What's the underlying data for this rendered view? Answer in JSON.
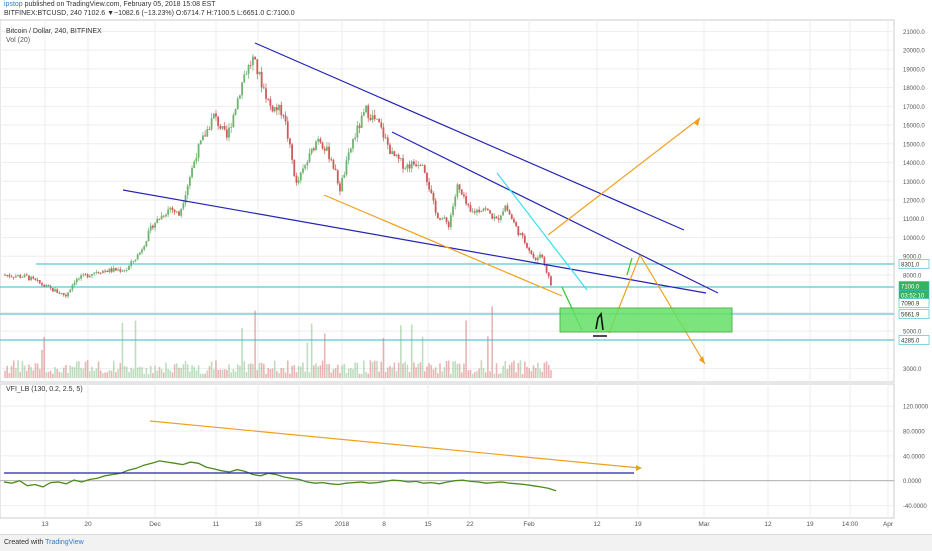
{
  "header": {
    "user": "ipstop",
    "publish_text": "published on TradingView.com, February 05, 2018 15:08 EST",
    "ticker_line": "BITFINEX:BTCUSD, 240  7102.6  ▼−1082.6 (−13.23%)  O:6714.7  H:7100.5  L:6651.0  C:7100.0"
  },
  "panes": {
    "price_title": "Bitcoin / Dollar, 240, BITFINEX",
    "vol_label": "Vol (20)",
    "vfi_label": "VFI_LB (130, 0.2, 2.5, 5)"
  },
  "footer": {
    "created_with": "Created with",
    "brand": "TradingView"
  },
  "colors": {
    "up": "#6fb36f",
    "down": "#d05a5a",
    "trend": "#2323b4",
    "fib": "#35b9c9",
    "orange": "#f0a020",
    "cyan": "#35e0ee",
    "green_zone": "#66e066",
    "vfi": "#4a8a1e",
    "grid": "#eeeeee"
  },
  "chart_data": [
    {
      "type": "candlestick",
      "title": "Bitcoin / Dollar, 240, BITFINEX",
      "x_tick_labels": [
        "13",
        "20",
        "Dec",
        "11",
        "18",
        "25",
        "2018",
        "8",
        "15",
        "22",
        "Feb",
        "12",
        "19",
        "Mar",
        "12",
        "19",
        "14:00",
        "Apr"
      ],
      "y_tick_labels": [
        "21000.0",
        "20000.0",
        "19000.0",
        "18000.0",
        "17000.0",
        "16000.0",
        "15000.0",
        "14000.0",
        "13000.0",
        "12000.0",
        "11000.0",
        "10000.0",
        "9000.0",
        "8000.0",
        "6000.0",
        "5000.0",
        "3000.0"
      ],
      "ylim": [
        2500,
        21500
      ],
      "price_path": [
        {
          "t": 0,
          "v": 8000
        },
        {
          "t": 5,
          "v": 7900
        },
        {
          "t": 10,
          "v": 7300
        },
        {
          "t": 14,
          "v": 6900
        },
        {
          "t": 16,
          "v": 7700
        },
        {
          "t": 21,
          "v": 8200
        },
        {
          "t": 28,
          "v": 8300
        },
        {
          "t": 31,
          "v": 9200
        },
        {
          "t": 34,
          "v": 10700
        },
        {
          "t": 38,
          "v": 11600
        },
        {
          "t": 40,
          "v": 11200
        },
        {
          "t": 44,
          "v": 14500
        },
        {
          "t": 48,
          "v": 16500
        },
        {
          "t": 51,
          "v": 15300
        },
        {
          "t": 55,
          "v": 18700
        },
        {
          "t": 57,
          "v": 19500
        },
        {
          "t": 61,
          "v": 17000
        },
        {
          "t": 64,
          "v": 16700
        },
        {
          "t": 67,
          "v": 12800
        },
        {
          "t": 69,
          "v": 13800
        },
        {
          "t": 72,
          "v": 15400
        },
        {
          "t": 75,
          "v": 14200
        },
        {
          "t": 77,
          "v": 12600
        },
        {
          "t": 80,
          "v": 15200
        },
        {
          "t": 83,
          "v": 16800
        },
        {
          "t": 86,
          "v": 16000
        },
        {
          "t": 89,
          "v": 14400
        },
        {
          "t": 92,
          "v": 13800
        },
        {
          "t": 96,
          "v": 14100
        },
        {
          "t": 99,
          "v": 11300
        },
        {
          "t": 102,
          "v": 10700
        },
        {
          "t": 104,
          "v": 12700
        },
        {
          "t": 107,
          "v": 11300
        },
        {
          "t": 110,
          "v": 11600
        },
        {
          "t": 113,
          "v": 10900
        },
        {
          "t": 115,
          "v": 11700
        },
        {
          "t": 118,
          "v": 10300
        },
        {
          "t": 120,
          "v": 9600
        },
        {
          "t": 122,
          "v": 8700
        },
        {
          "t": 123,
          "v": 9200
        },
        {
          "t": 124,
          "v": 8600
        },
        {
          "t": 126,
          "v": 7100
        }
      ],
      "last_price": 7100.0,
      "price_labels": [
        "8301.0",
        "7100.0",
        "03:52:10",
        "7090.9",
        "5661.9",
        "4285.0"
      ],
      "levels": [
        8301.0,
        7100.0,
        5661.9,
        4285.0
      ],
      "annotations": {
        "zone": [
          4450,
          5650
        ],
        "hand_drawn_number": "1"
      }
    },
    {
      "type": "bar",
      "title": "Vol (20)",
      "series": [
        {
          "values": "volume bars beneath price, colored by candle direction"
        }
      ]
    },
    {
      "type": "line",
      "title": "VFI_LB (130, 0.2, 2.5, 5)",
      "y_tick_labels": [
        "120.0000",
        "80.0000",
        "40.0000",
        "0.0000",
        "-40.0000"
      ],
      "ylim": [
        -60,
        130
      ],
      "series": [
        {
          "values": [
            -2,
            -4,
            0,
            -8,
            -6,
            -10,
            -3,
            -2,
            -5,
            1,
            -2,
            2,
            4,
            8,
            10,
            12,
            17,
            20,
            25,
            28,
            32,
            30,
            28,
            26,
            30,
            28,
            22,
            19,
            16,
            14,
            18,
            15,
            10,
            8,
            12,
            10,
            6,
            4,
            2,
            -2,
            -4,
            -3,
            -5,
            -6,
            -4,
            -3,
            -2,
            -4,
            -3,
            -1,
            1,
            0,
            -2,
            -1,
            -4,
            -3,
            -5,
            -2,
            0,
            1,
            -1,
            -2,
            -4,
            -3,
            -2,
            -4,
            -5,
            -6,
            -8,
            -10,
            -12,
            -16
          ]
        }
      ]
    }
  ]
}
